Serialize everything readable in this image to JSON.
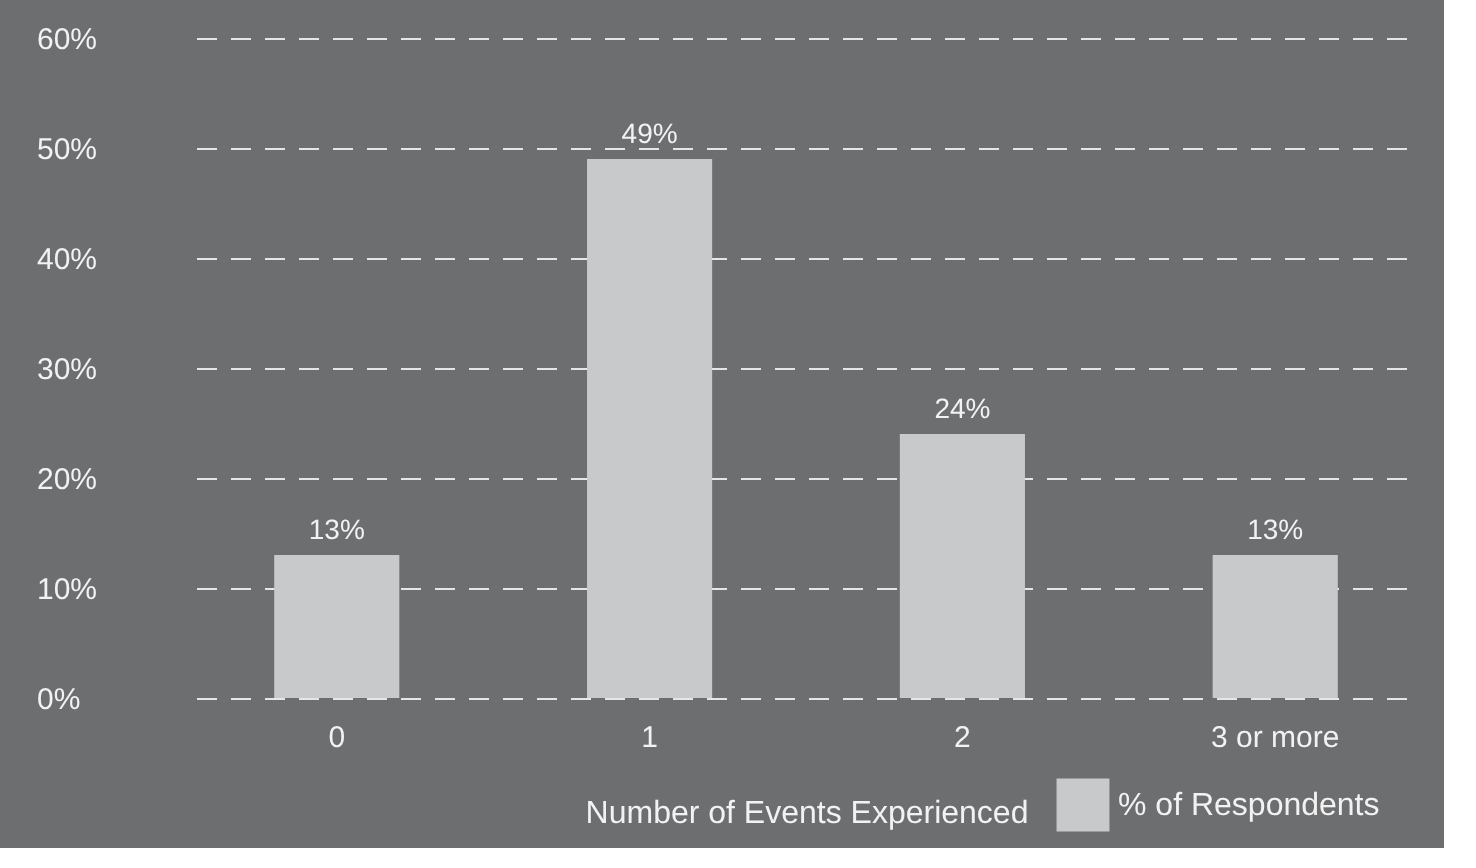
{
  "chart_data": {
    "type": "bar",
    "categories": [
      "0",
      "1",
      "2",
      "3 or more"
    ],
    "series": [
      {
        "name": "% of Respondents",
        "color": "#c8c9cb",
        "values": [
          13,
          49,
          24,
          13
        ],
        "value_labels": [
          "13%",
          "49%",
          "24%",
          "13%"
        ]
      }
    ],
    "xlabel": "Number of Events Experienced",
    "ylim": [
      0,
      60
    ],
    "yticks": [
      {
        "value": 0,
        "label": "0%"
      },
      {
        "value": 10,
        "label": "10%"
      },
      {
        "value": 20,
        "label": "20%"
      },
      {
        "value": 30,
        "label": "30%"
      },
      {
        "value": 40,
        "label": "40%"
      },
      {
        "value": 50,
        "label": "50%"
      },
      {
        "value": 60,
        "label": "60%"
      }
    ],
    "grid": "y",
    "legend": "bottom right"
  }
}
